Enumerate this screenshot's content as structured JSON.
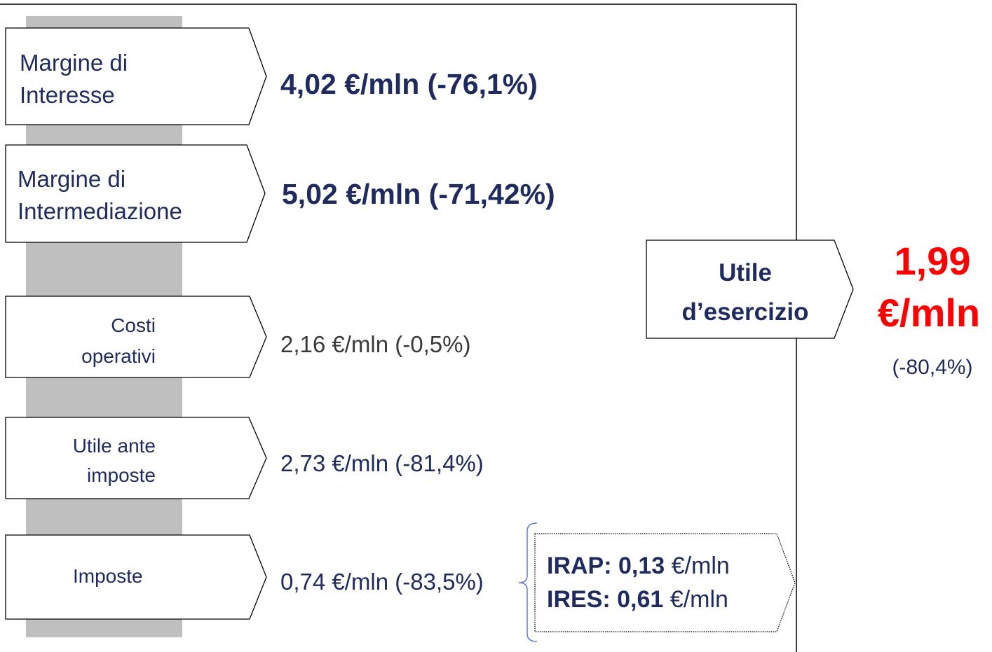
{
  "colors": {
    "navy": "#1f2b5e",
    "red": "#ff0000",
    "gray_bar": "#bfbfbf",
    "text_gray": "#3a3a3a",
    "brace_blue": "#5b7bd5"
  },
  "steps": [
    {
      "label_lines": [
        "Margine di",
        "Interesse"
      ],
      "value": "4,02 €/mln (-76,1%)"
    },
    {
      "label_lines": [
        "Margine di",
        "Intermediazione"
      ],
      "value": "5,02 €/mln (-71,42%)"
    },
    {
      "label_lines": [
        "Costi",
        "operativi"
      ],
      "value": "2,16 €/mln (-0,5%)"
    },
    {
      "label_lines": [
        "Utile ante",
        "imposte"
      ],
      "value": "2,73 €/mln (-81,4%)"
    },
    {
      "label_lines": [
        "Imposte"
      ],
      "value": "0,74 €/mln (-83,5%)"
    }
  ],
  "tax_detail": {
    "irap": {
      "label": "IRAP:",
      "value": "0,13",
      "unit": "€/mln"
    },
    "ires": {
      "label": "IRES:",
      "value": "0,61",
      "unit": "€/mln"
    }
  },
  "result": {
    "label_lines": [
      "Utile",
      "d’esercizio"
    ],
    "value": "1,99",
    "unit": "€/mln",
    "change": "(-80,4%)"
  }
}
